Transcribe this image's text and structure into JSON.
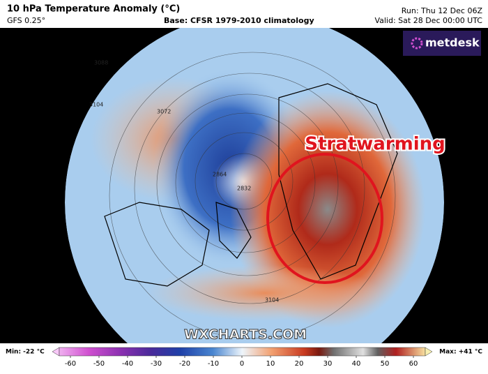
{
  "header": {
    "title": "10 hPa Temperature Anomaly (°C)",
    "model": "GFS 0.25°",
    "base": "Base: CFSR 1979-2010 climatology",
    "run": "Run: Thu 12 Dec 06Z",
    "valid": "Valid: Sat 28 Dec 00:00 UTC"
  },
  "logo": "metdesk",
  "map": {
    "annotation": "Stratwarming",
    "watermark": "WXCHARTS.COM",
    "contour_labels": [
      "3104",
      "3088",
      "3072",
      "2864",
      "2832",
      "3104"
    ]
  },
  "colorbar": {
    "min_label": "Min: -22 °C",
    "max_label": "Max: +41 °C",
    "ticks": [
      -60,
      -50,
      -40,
      -30,
      -20,
      -10,
      0,
      10,
      20,
      30,
      40,
      50,
      60
    ]
  }
}
